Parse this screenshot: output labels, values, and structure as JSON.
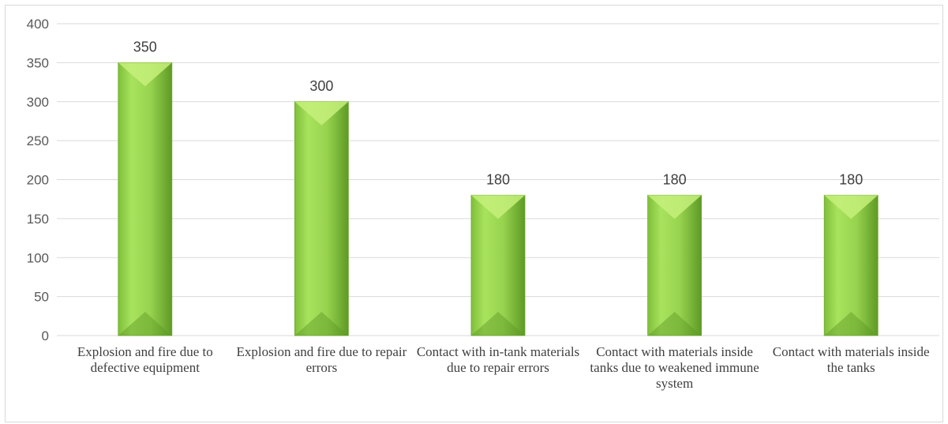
{
  "chart_data": {
    "type": "bar",
    "categories": [
      "Explosion and fire due to defective equipment",
      "Explosion and fire due to repair errors",
      "Contact with in-tank materials due to repair errors",
      "Contact with materials inside tanks due to weakened immune system",
      "Contact with materials inside the tanks"
    ],
    "values": [
      350,
      300,
      180,
      180,
      180
    ],
    "data_labels": [
      "350",
      "300",
      "180",
      "180",
      "180"
    ],
    "y_ticks": [
      0,
      50,
      100,
      150,
      200,
      250,
      300,
      350,
      400
    ],
    "ylim": [
      0,
      400
    ],
    "grid": true,
    "legend": "none",
    "colors": {
      "bar_light": "#c6f07a",
      "bar_mid": "#92d050",
      "bar_dark": "#5e9a25",
      "grid": "#d9d9d9",
      "text": "#595959"
    }
  }
}
